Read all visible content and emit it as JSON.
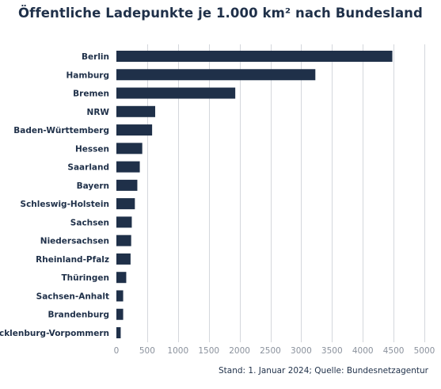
{
  "chart_data": {
    "type": "bar",
    "orientation": "horizontal",
    "title": "Öffentliche Ladepunkte je 1.000 km² nach Bundesland",
    "categories": [
      "Berlin",
      "Hamburg",
      "Bremen",
      "NRW",
      "Baden-Württemberg",
      "Hessen",
      "Saarland",
      "Bayern",
      "Schleswig-Holstein",
      "Sachsen",
      "Niedersachsen",
      "Rheinland-Pfalz",
      "Thüringen",
      "Sachsen-Anhalt",
      "Brandenburg",
      "Mecklenburg-Vorpommern"
    ],
    "values": [
      4480,
      3230,
      1930,
      630,
      580,
      420,
      380,
      340,
      300,
      250,
      240,
      230,
      160,
      110,
      110,
      70
    ],
    "xlim": [
      0,
      5000
    ],
    "xticks": [
      0,
      500,
      1000,
      1500,
      2000,
      2500,
      3000,
      3500,
      4000,
      4500,
      5000
    ],
    "grid": true,
    "bar_color": "#1f3049",
    "grid_color": "#d4d7dc",
    "source": "Stand: 1. Januar 2024; Quelle: Bundesnetzagentur"
  }
}
